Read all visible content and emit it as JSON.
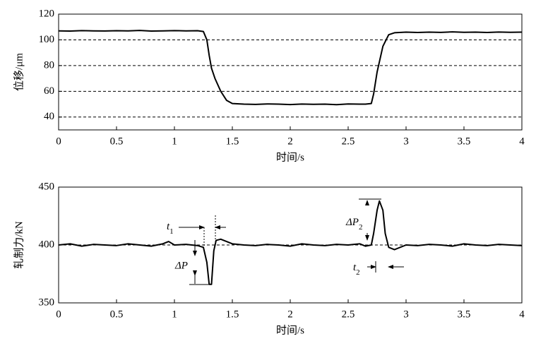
{
  "chart_data": [
    {
      "type": "line",
      "xlabel": "时间/s",
      "ylabel": "位移/μm",
      "xlim": [
        0,
        4
      ],
      "xticks": [
        0,
        0.5,
        1,
        1.5,
        2,
        2.5,
        3,
        3.5,
        4
      ],
      "ylim": [
        30,
        120
      ],
      "yticks": [
        40,
        60,
        80,
        100,
        120
      ],
      "grid": true,
      "x": [
        0,
        0.1,
        0.2,
        0.3,
        0.4,
        0.5,
        0.6,
        0.7,
        0.8,
        0.9,
        1.0,
        1.1,
        1.2,
        1.25,
        1.28,
        1.3,
        1.32,
        1.35,
        1.4,
        1.45,
        1.5,
        1.6,
        1.7,
        1.8,
        1.9,
        2.0,
        2.1,
        2.2,
        2.3,
        2.4,
        2.5,
        2.6,
        2.65,
        2.7,
        2.72,
        2.75,
        2.8,
        2.85,
        2.9,
        3.0,
        3.1,
        3.2,
        3.3,
        3.4,
        3.5,
        3.6,
        3.7,
        3.8,
        3.9,
        4.0
      ],
      "series": [
        {
          "color": "#000000",
          "values": [
            107,
            106.8,
            107.2,
            107,
            106.9,
            107.1,
            107,
            107.3,
            106.8,
            107,
            107.2,
            107,
            107.1,
            106.5,
            100,
            88,
            78,
            70,
            60,
            53,
            50.5,
            50,
            49.8,
            50.2,
            50,
            49.7,
            50.1,
            49.9,
            50,
            49.6,
            50.2,
            50,
            50,
            50.5,
            58,
            75,
            95,
            104,
            105.5,
            106,
            105.7,
            106,
            105.8,
            106.2,
            105.9,
            106,
            105.7,
            106.1,
            105.9,
            106
          ]
        }
      ]
    },
    {
      "type": "line",
      "xlabel": "时间/s",
      "ylabel": "轧制力/kN",
      "xlim": [
        0,
        4
      ],
      "xticks": [
        0,
        0.5,
        1,
        1.5,
        2,
        2.5,
        3,
        3.5,
        4
      ],
      "ylim": [
        350,
        450
      ],
      "yticks": [
        350,
        400,
        450
      ],
      "grid": true,
      "x": [
        0,
        0.1,
        0.2,
        0.3,
        0.4,
        0.5,
        0.6,
        0.7,
        0.8,
        0.9,
        0.95,
        1.0,
        1.1,
        1.2,
        1.25,
        1.28,
        1.3,
        1.32,
        1.34,
        1.36,
        1.4,
        1.45,
        1.5,
        1.6,
        1.7,
        1.8,
        1.9,
        2.0,
        2.1,
        2.2,
        2.3,
        2.4,
        2.5,
        2.6,
        2.65,
        2.7,
        2.72,
        2.75,
        2.77,
        2.8,
        2.82,
        2.85,
        2.9,
        3.0,
        3.1,
        3.2,
        3.3,
        3.4,
        3.5,
        3.6,
        3.7,
        3.8,
        3.9,
        4.0
      ],
      "series": [
        {
          "color": "#000000",
          "values": [
            400,
            401,
            399,
            400.5,
            400,
            399.5,
            401,
            400,
            399,
            401,
            403,
            400,
            400.5,
            399.5,
            398,
            385,
            366,
            366,
            395,
            404,
            405,
            403,
            401,
            400,
            399.5,
            400.5,
            400,
            399,
            401,
            400,
            399.5,
            400.5,
            400,
            401,
            399,
            400,
            410,
            430,
            438,
            430,
            410,
            398,
            396,
            400,
            399.5,
            400.5,
            400,
            399,
            401,
            400,
            399.5,
            400.5,
            400,
            399.5
          ]
        }
      ],
      "annotations": [
        {
          "text": "t",
          "sub": "1"
        },
        {
          "text": "ΔP"
        },
        {
          "text": "ΔP",
          "sub": "2"
        },
        {
          "text": "t",
          "sub": "2"
        }
      ]
    }
  ]
}
